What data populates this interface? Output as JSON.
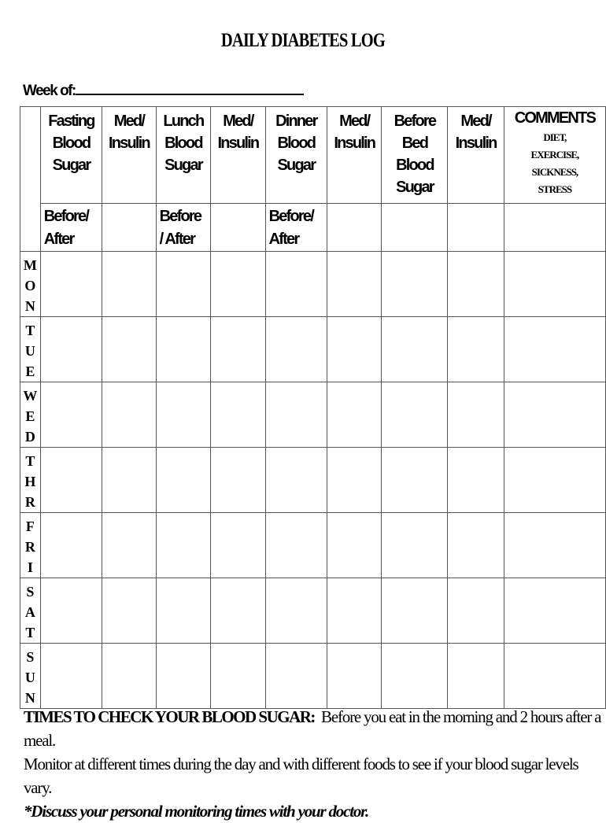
{
  "title": "DAILY DIABETES LOG",
  "week_label": "Week of:",
  "headers": [
    {
      "lines": [
        "Fasting",
        "Blood",
        "Sugar"
      ],
      "sub": [
        "Before/",
        "After"
      ]
    },
    {
      "lines": [
        "Med/",
        "Insulin"
      ],
      "sub": []
    },
    {
      "lines": [
        "Lunch",
        "Blood",
        "Sugar"
      ],
      "sub": [
        "Before",
        "/ After"
      ]
    },
    {
      "lines": [
        "Med/",
        "Insulin"
      ],
      "sub": []
    },
    {
      "lines": [
        "Dinner",
        "Blood",
        "Sugar"
      ],
      "sub": [
        "Before/",
        "After"
      ]
    },
    {
      "lines": [
        "Med/",
        "Insulin"
      ],
      "sub": []
    },
    {
      "lines": [
        "Before",
        "Bed Blood",
        "Sugar"
      ],
      "sub": []
    },
    {
      "lines": [
        "Med/",
        "Insulin"
      ],
      "sub": []
    }
  ],
  "comments": {
    "title": "COMMENTS",
    "lines": [
      "DIET,",
      "EXERCISE,",
      "SICKNESS,",
      "STRESS"
    ]
  },
  "days": [
    [
      "M",
      "O",
      "N"
    ],
    [
      "T",
      "U",
      "E"
    ],
    [
      "W",
      "E",
      "D"
    ],
    [
      "T",
      "H",
      "R"
    ],
    [
      "F",
      "R",
      "I"
    ],
    [
      "S",
      "A",
      "T"
    ],
    [
      "S",
      "U",
      "N"
    ]
  ],
  "notes": {
    "bold_label": "TIMES TO CHECK YOUR BLOOD SUGAR:",
    "line1": "Before you eat in the morning and 2 hours after a meal.",
    "line2": "Monitor at different times during the day and with different foods to see if your blood sugar levels vary.",
    "line3": "*Discuss your personal monitoring times with your doctor."
  }
}
